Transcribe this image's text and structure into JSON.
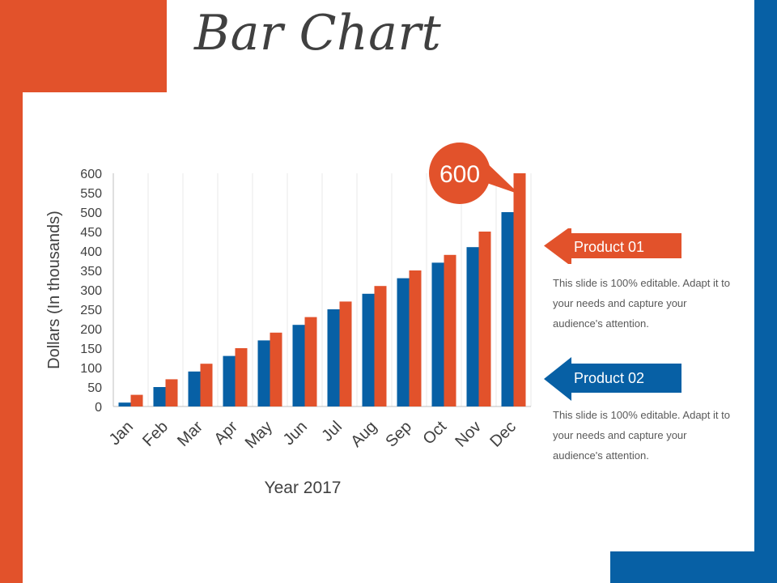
{
  "slide": {
    "title": "Bar Chart"
  },
  "colors": {
    "product_01": "#E2522B",
    "product_02": "#0760A5",
    "grid": "#E8E8E8",
    "axis": "#BFBFBF",
    "text": "#404040"
  },
  "chart_data": {
    "type": "bar",
    "title": "",
    "xlabel": "Year 2017",
    "ylabel": "Dollars (In thousands)",
    "ylim": [
      0,
      600
    ],
    "yticks": [
      0,
      50,
      100,
      150,
      200,
      250,
      300,
      350,
      400,
      450,
      500,
      550,
      600
    ],
    "categories": [
      "Jan",
      "Feb",
      "Mar",
      "Apr",
      "May",
      "Jun",
      "Jul",
      "Aug",
      "Sep",
      "Oct",
      "Nov",
      "Dec"
    ],
    "series": [
      {
        "name": "Product 02",
        "color": "#0760A5",
        "values": [
          10,
          50,
          90,
          130,
          170,
          210,
          250,
          290,
          330,
          370,
          410,
          500
        ]
      },
      {
        "name": "Product 01",
        "color": "#E2522B",
        "values": [
          30,
          70,
          110,
          150,
          190,
          230,
          270,
          310,
          350,
          390,
          450,
          600
        ]
      }
    ],
    "callout": {
      "label": "600",
      "category": "Dec",
      "series": "Product 01",
      "value": 600
    }
  },
  "legend": [
    {
      "label": "Product 01",
      "description": "This slide is 100% editable. Adapt it to your needs and capture your audience's attention."
    },
    {
      "label": "Product 02",
      "description": "This slide is 100% editable. Adapt it to your needs and capture your audience's attention."
    }
  ]
}
